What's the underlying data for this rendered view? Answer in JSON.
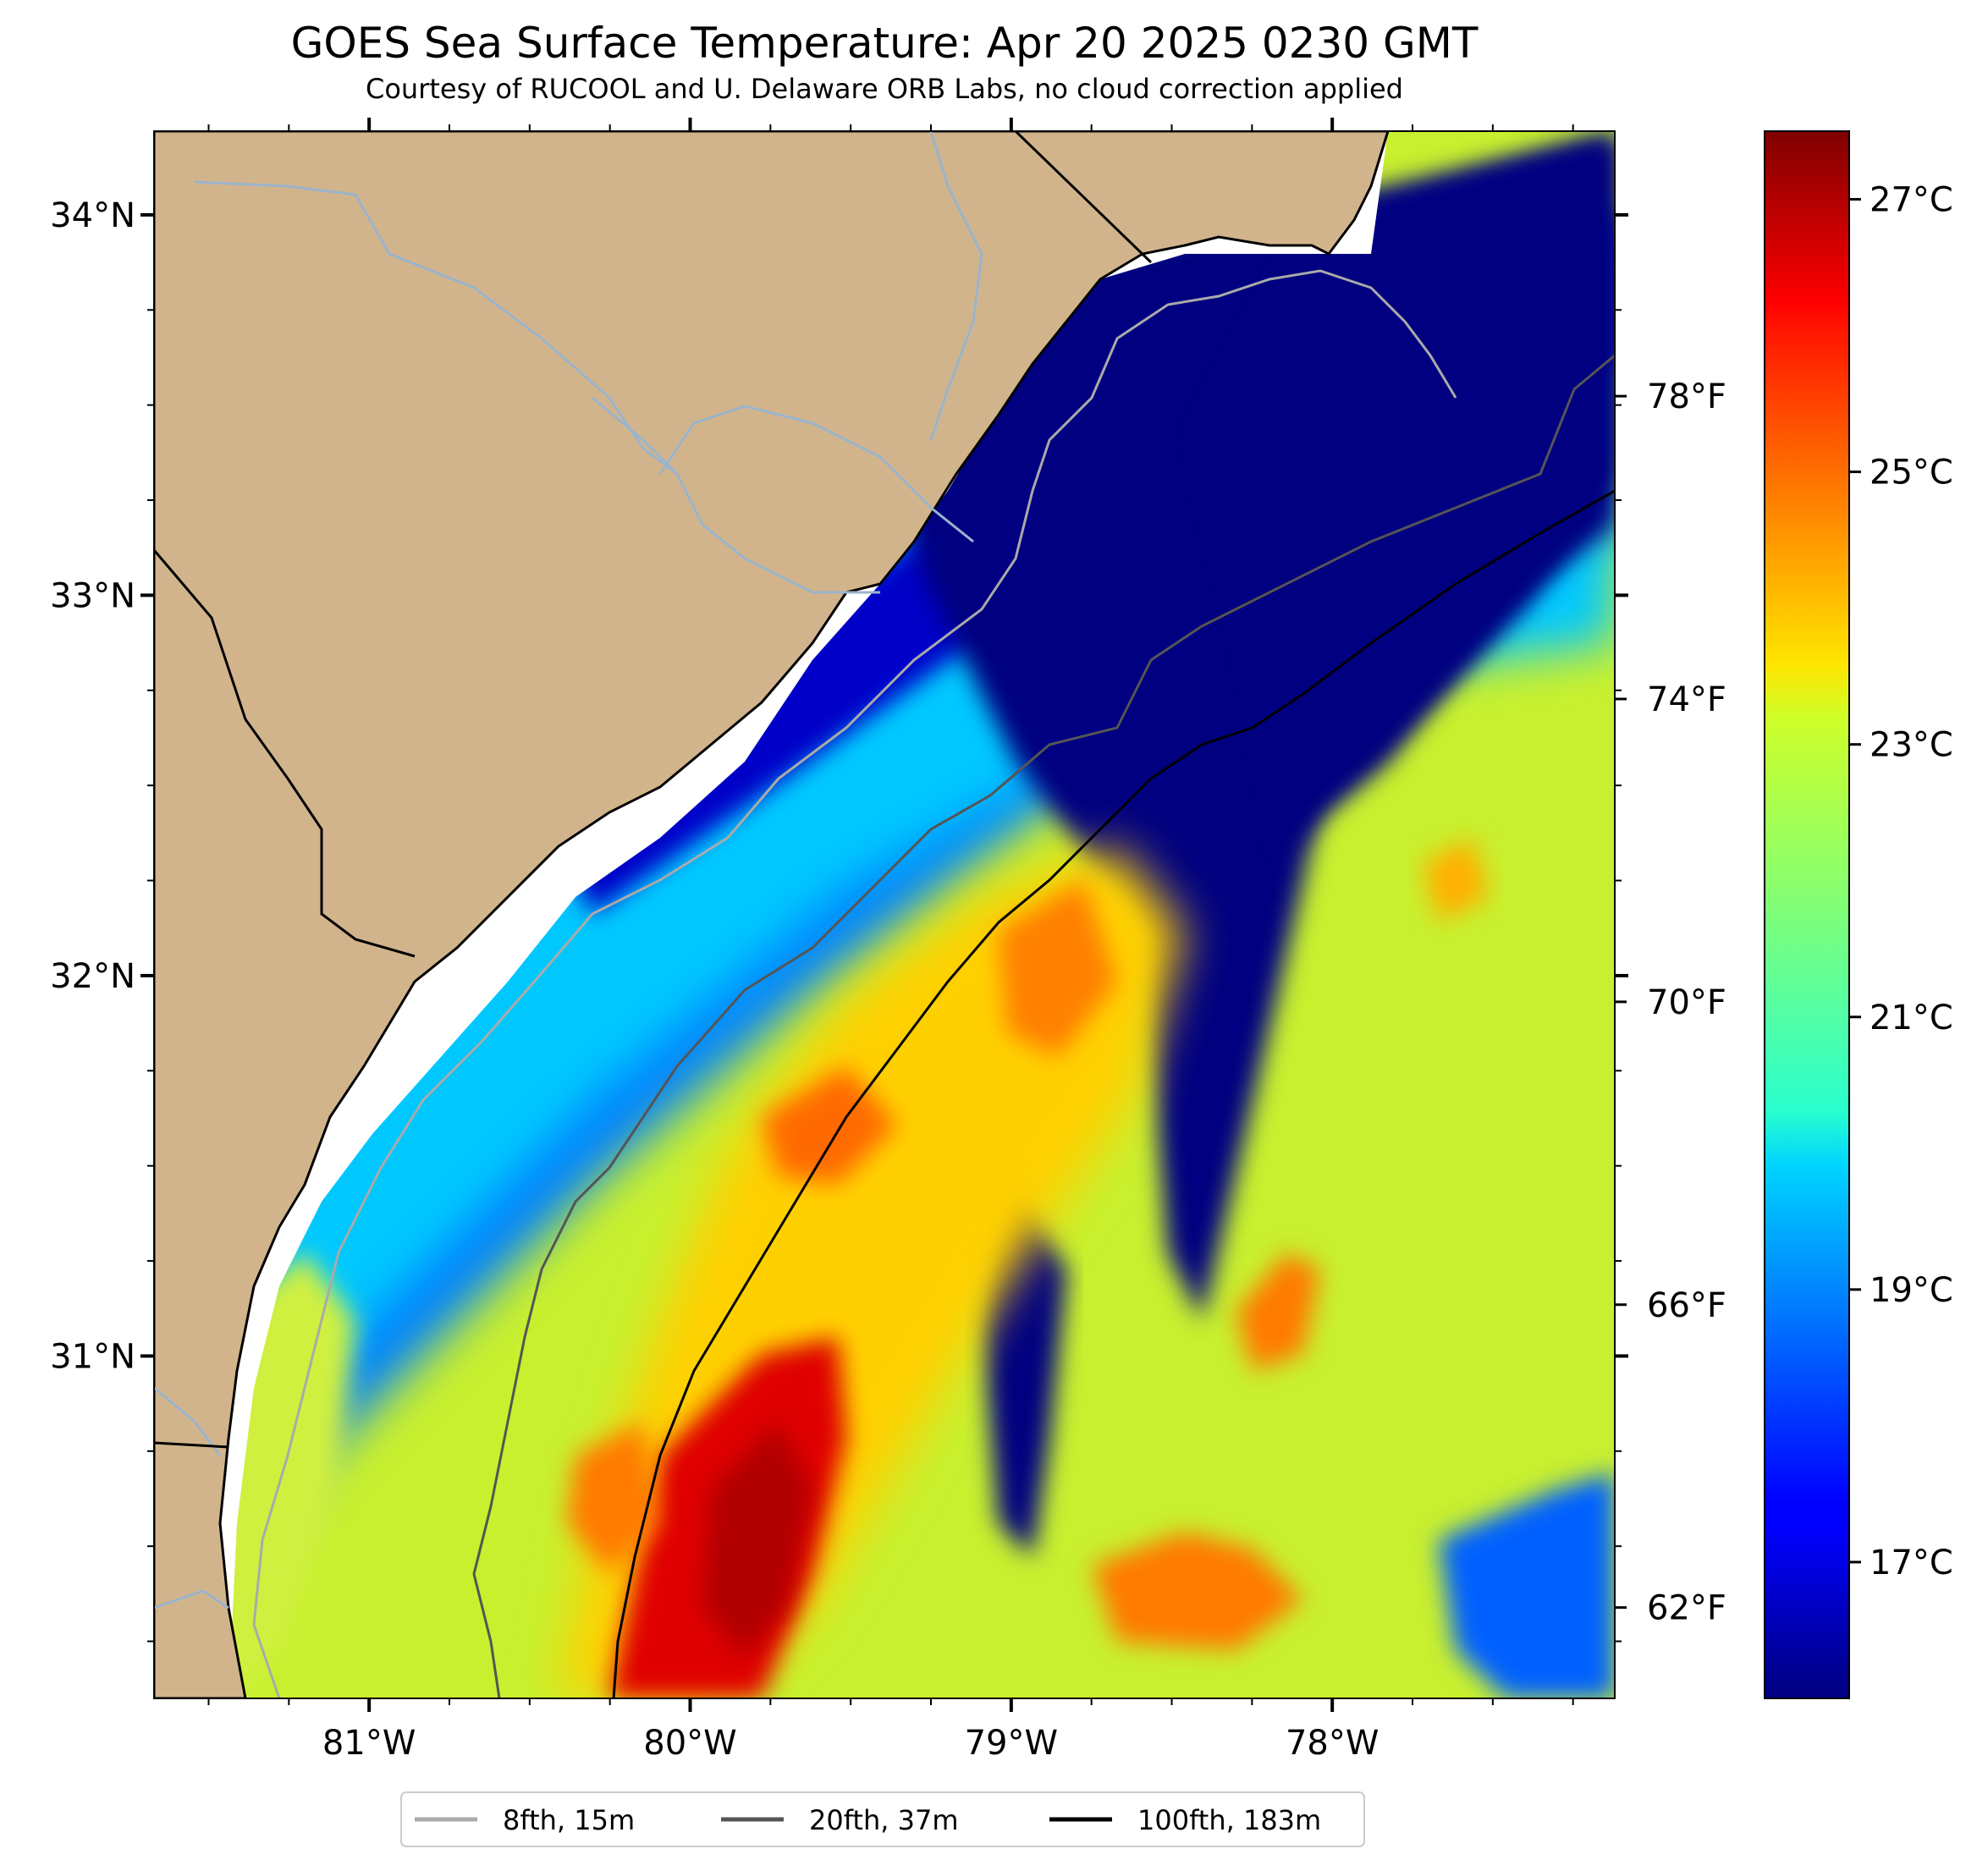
{
  "title": "GOES Sea Surface Temperature: Apr 20 2025 0230 GMT",
  "subtitle": "Courtesy of RUCOOL and U. Delaware ORB Labs, no cloud correction applied",
  "map": {
    "lon_range": [
      -81.67,
      -77.12
    ],
    "lat_range": [
      30.1,
      34.22
    ],
    "lon_ticks": [
      {
        "value": -81,
        "label": "81°W"
      },
      {
        "value": -80,
        "label": "80°W"
      },
      {
        "value": -79,
        "label": "79°W"
      },
      {
        "value": -78,
        "label": "78°W"
      }
    ],
    "lat_ticks": [
      {
        "value": 34,
        "label": "34°N"
      },
      {
        "value": 33,
        "label": "33°N"
      },
      {
        "value": 32,
        "label": "32°N"
      },
      {
        "value": 31,
        "label": "31°N"
      }
    ],
    "colors": {
      "land": "#d2b48c",
      "rivers": "#9ab4cc",
      "coast": "#000000",
      "nodata": "#ffffff"
    }
  },
  "colorbar": {
    "colormap": "jet",
    "range_c": [
      16.0,
      27.5
    ],
    "celsius_ticks": [
      {
        "value": 27,
        "label": "27°C"
      },
      {
        "value": 25,
        "label": "25°C"
      },
      {
        "value": 23,
        "label": "23°C"
      },
      {
        "value": 21,
        "label": "21°C"
      },
      {
        "value": 19,
        "label": "19°C"
      },
      {
        "value": 17,
        "label": "17°C"
      }
    ],
    "fahrenheit_ticks": [
      {
        "value": 78,
        "label": "78°F"
      },
      {
        "value": 74,
        "label": "74°F"
      },
      {
        "value": 70,
        "label": "70°F"
      },
      {
        "value": 66,
        "label": "66°F"
      },
      {
        "value": 62,
        "label": "62°F"
      }
    ]
  },
  "legend": {
    "position": "bottom-center",
    "items": [
      {
        "label": "8fth, 15m",
        "color": "#aaaaaa"
      },
      {
        "label": "20fth, 37m",
        "color": "#555555"
      },
      {
        "label": "100fth, 183m",
        "color": "#000000"
      }
    ]
  }
}
